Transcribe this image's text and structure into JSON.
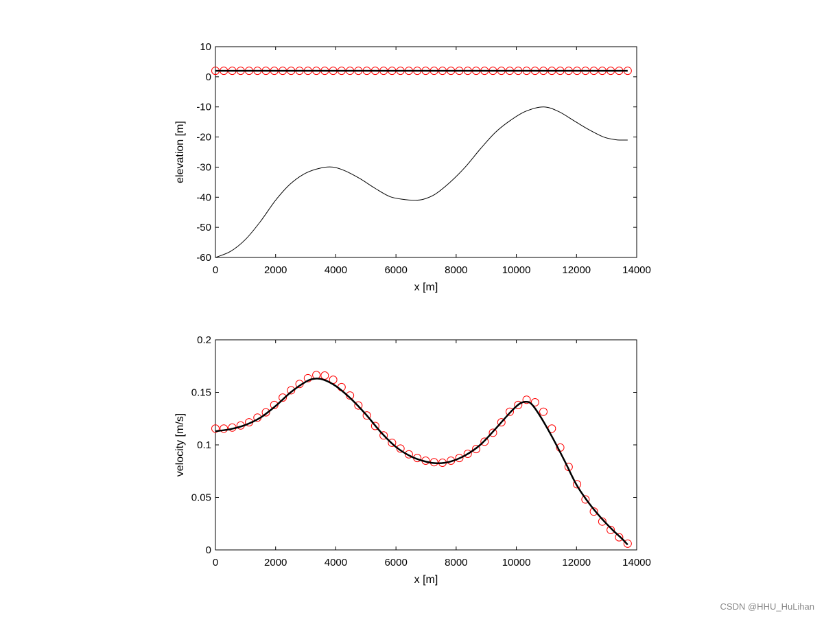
{
  "chart_data": [
    {
      "type": "line",
      "xlabel": "x [m]",
      "ylabel": "elevation [m]",
      "xlim": [
        0,
        14000
      ],
      "ylim": [
        -60,
        10
      ],
      "xticks": [
        0,
        2000,
        4000,
        6000,
        8000,
        10000,
        12000,
        14000
      ],
      "yticks": [
        10,
        0,
        -10,
        -20,
        -30,
        -40,
        -50,
        -60
      ],
      "grid": false,
      "series": [
        {
          "name": "water surface (markers)",
          "style": "red-circles",
          "color": "#ff0000",
          "x": [
            0,
            279,
            559,
            838,
            1118,
            1397,
            1677,
            1956,
            2236,
            2515,
            2795,
            3074,
            3354,
            3633,
            3913,
            4192,
            4472,
            4751,
            5031,
            5310,
            5590,
            5869,
            6149,
            6428,
            6708,
            6987,
            7267,
            7546,
            7826,
            8105,
            8385,
            8664,
            8944,
            9223,
            9503,
            9782,
            10062,
            10341,
            10621,
            10900,
            11180,
            11459,
            11739,
            12018,
            12298,
            12577,
            12857,
            13136,
            13416,
            13700
          ],
          "y": [
            2,
            2,
            2,
            2,
            2,
            2,
            2,
            2,
            2,
            2,
            2,
            2,
            2,
            2,
            2,
            2,
            2,
            2,
            2,
            2,
            2,
            2,
            2,
            2,
            2,
            2,
            2,
            2,
            2,
            2,
            2,
            2,
            2,
            2,
            2,
            2,
            2,
            2,
            2,
            2,
            2,
            2,
            2,
            2,
            2,
            2,
            2,
            2,
            2,
            2
          ]
        },
        {
          "name": "water surface (line)",
          "style": "thick-black-line",
          "color": "#000000",
          "x": [
            0,
            13700
          ],
          "y": [
            2,
            2
          ]
        },
        {
          "name": "bed elevation",
          "style": "thin-black-line",
          "color": "#000000",
          "x": [
            0,
            500,
            1000,
            1500,
            2000,
            2500,
            3000,
            3500,
            3900,
            4300,
            4800,
            5300,
            5800,
            6300,
            6600,
            6900,
            7300,
            7800,
            8300,
            8800,
            9300,
            9800,
            10300,
            10900,
            11400,
            11900,
            12400,
            12900,
            13300,
            13500,
            13700
          ],
          "y": [
            -60,
            -58,
            -54,
            -48,
            -41,
            -35.5,
            -32,
            -30.3,
            -30,
            -31.2,
            -33.8,
            -37,
            -39.8,
            -40.8,
            -41,
            -40.7,
            -39,
            -35,
            -30,
            -24,
            -18.5,
            -14.5,
            -11.5,
            -10,
            -11.5,
            -14.5,
            -17.5,
            -20,
            -20.9,
            -21,
            -21
          ]
        }
      ]
    },
    {
      "type": "line",
      "xlabel": "x [m]",
      "ylabel": "velocity [m/s]",
      "xlim": [
        0,
        14000
      ],
      "ylim": [
        0,
        0.2
      ],
      "xticks": [
        0,
        2000,
        4000,
        6000,
        8000,
        10000,
        12000,
        14000
      ],
      "yticks": [
        0.2,
        0.15,
        0.1,
        0.05,
        0
      ],
      "grid": false,
      "series": [
        {
          "name": "velocity (markers)",
          "style": "red-circles",
          "color": "#ff0000",
          "x": [
            0,
            279,
            559,
            838,
            1118,
            1397,
            1677,
            1956,
            2236,
            2515,
            2795,
            3074,
            3354,
            3633,
            3913,
            4192,
            4472,
            4751,
            5031,
            5310,
            5590,
            5869,
            6149,
            6428,
            6708,
            6987,
            7267,
            7546,
            7826,
            8105,
            8385,
            8664,
            8944,
            9223,
            9503,
            9782,
            10062,
            10341,
            10621,
            10900,
            11180,
            11459,
            11739,
            12018,
            12298,
            12577,
            12857,
            13136,
            13416,
            13700
          ],
          "y": [
            0.1155,
            0.1155,
            0.1165,
            0.1185,
            0.1215,
            0.126,
            0.131,
            0.138,
            0.145,
            0.152,
            0.158,
            0.1635,
            0.1665,
            0.166,
            0.162,
            0.155,
            0.147,
            0.1375,
            0.128,
            0.118,
            0.109,
            0.102,
            0.0965,
            0.091,
            0.0875,
            0.085,
            0.0835,
            0.083,
            0.085,
            0.0875,
            0.0915,
            0.096,
            0.103,
            0.1115,
            0.1215,
            0.1315,
            0.138,
            0.143,
            0.1405,
            0.1315,
            0.1155,
            0.0975,
            0.079,
            0.0625,
            0.048,
            0.0365,
            0.027,
            0.019,
            0.012,
            0.006
          ]
        },
        {
          "name": "velocity (line)",
          "style": "thick-black-line",
          "color": "#000000",
          "x": [
            0,
            500,
            1000,
            1500,
            2000,
            2500,
            3000,
            3300,
            3600,
            4000,
            4500,
            5000,
            5500,
            6000,
            6500,
            7000,
            7400,
            7800,
            8300,
            8800,
            9300,
            9800,
            10100,
            10300,
            10500,
            10800,
            11200,
            11600,
            12000,
            12400,
            12800,
            13200,
            13500,
            13700
          ],
          "y": [
            0.113,
            0.115,
            0.119,
            0.126,
            0.137,
            0.15,
            0.16,
            0.163,
            0.162,
            0.156,
            0.144,
            0.129,
            0.112,
            0.098,
            0.089,
            0.084,
            0.0825,
            0.084,
            0.09,
            0.1,
            0.115,
            0.131,
            0.139,
            0.141,
            0.139,
            0.127,
            0.107,
            0.085,
            0.062,
            0.045,
            0.031,
            0.019,
            0.011,
            0.005
          ]
        }
      ]
    }
  ],
  "watermark": "CSDN @HHU_HuLihan"
}
